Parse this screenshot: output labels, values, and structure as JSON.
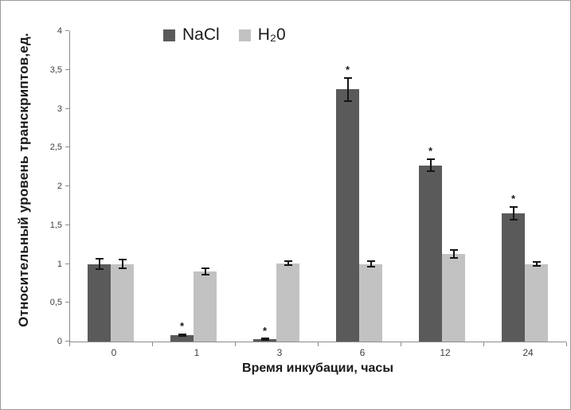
{
  "chart_data": {
    "type": "bar",
    "title": "",
    "xlabel": "Время инкубации, часы",
    "ylabel": "Относительный уровень транскриптов,ед.",
    "categories": [
      "0",
      "1",
      "3",
      "6",
      "12",
      "24"
    ],
    "series": [
      {
        "name": "NaCl",
        "color": "#5a5a5a",
        "values": [
          1.0,
          0.08,
          0.03,
          3.25,
          2.27,
          1.65
        ],
        "errors": [
          0.08,
          0.02,
          0.015,
          0.16,
          0.09,
          0.09
        ],
        "significant": [
          false,
          true,
          true,
          true,
          true,
          true
        ]
      },
      {
        "name": "H₂0",
        "color": "#c2c2c2",
        "values": [
          1.0,
          0.9,
          1.01,
          1.0,
          1.13,
          1.0
        ],
        "errors": [
          0.07,
          0.05,
          0.04,
          0.05,
          0.06,
          0.04
        ],
        "significant": [
          false,
          false,
          false,
          false,
          false,
          false
        ]
      }
    ],
    "ylim": [
      0,
      4
    ],
    "ytick_step": 0.5,
    "ytick_labels": [
      "0",
      "0,5",
      "1",
      "1,5",
      "2",
      "2,5",
      "3",
      "3,5",
      "4"
    ],
    "significance_marker": "*",
    "legend_position": "top",
    "grid": false,
    "error_bar_color": "#151515",
    "axis_color": "#8c8c8c"
  }
}
